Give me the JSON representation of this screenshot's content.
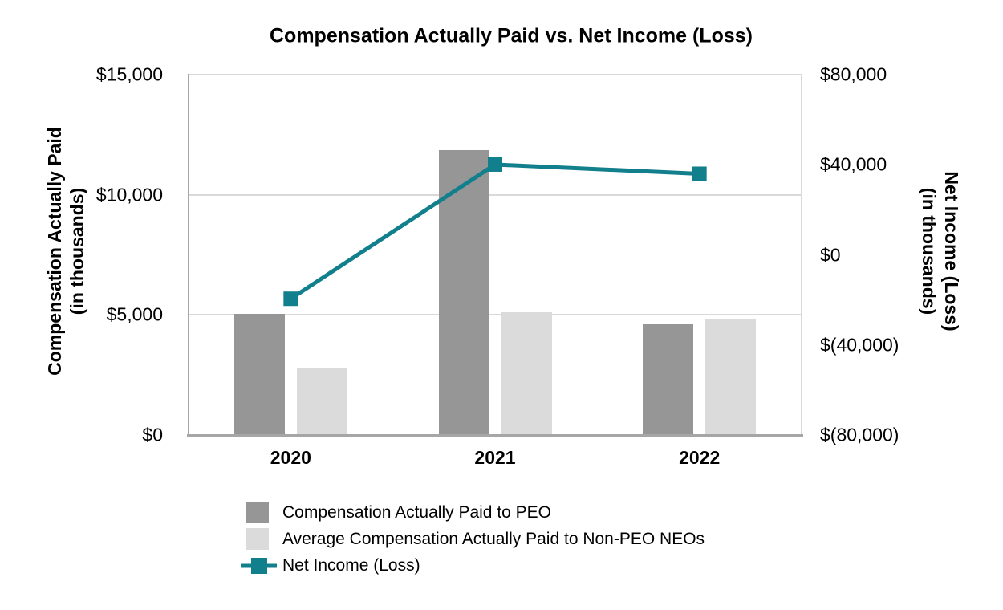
{
  "chart_data": {
    "type": "combo-bar-line",
    "title": "Compensation Actually Paid vs. Net Income (Loss)",
    "categories": [
      "2020",
      "2021",
      "2022"
    ],
    "series": [
      {
        "name": "Compensation Actually Paid to PEO",
        "type": "bar",
        "axis": "left",
        "color": "#969696",
        "values": [
          5050,
          11850,
          4600
        ]
      },
      {
        "name": "Average Compensation Actually Paid to Non-PEO NEOs",
        "type": "bar",
        "axis": "left",
        "color": "#DBDBDB",
        "values": [
          2800,
          5100,
          4800
        ]
      },
      {
        "name": "Net Income (Loss)",
        "type": "line",
        "axis": "right",
        "color": "#127F8C",
        "values": [
          -19500,
          40100,
          36000
        ]
      }
    ],
    "axes": {
      "left": {
        "title_line1": "Compensation Actually Paid",
        "title_line2": "(in thousands)",
        "min": 0,
        "max": 15000,
        "ticks": [
          {
            "value": 15000,
            "label": "$15,000"
          },
          {
            "value": 10000,
            "label": "$10,000"
          },
          {
            "value": 5000,
            "label": "$5,000"
          },
          {
            "value": 0,
            "label": "$0"
          }
        ]
      },
      "right": {
        "title_line1": "Net Income (Loss)",
        "title_line2": "(in thousands)",
        "min": -80000,
        "max": 80000,
        "ticks": [
          {
            "value": 80000,
            "label": "$80,000"
          },
          {
            "value": 40000,
            "label": "$40,000"
          },
          {
            "value": 0,
            "label": "$0"
          },
          {
            "value": -40000,
            "label": "$(40,000)"
          },
          {
            "value": -80000,
            "label": "$(80,000)"
          }
        ]
      }
    },
    "gridlines_left": [
      10000,
      5000
    ],
    "legend_position": "bottom-left",
    "grid": "horizontal-only",
    "units": "thousands of dollars"
  },
  "colors": {
    "bar_peo": "#969696",
    "bar_non_peo": "#DBDBDB",
    "line_net_income": "#127F8C",
    "gridline": "#D9D9D9",
    "axis_line": "#A6A6A6",
    "text": "#000000",
    "background": "#FFFFFF"
  }
}
